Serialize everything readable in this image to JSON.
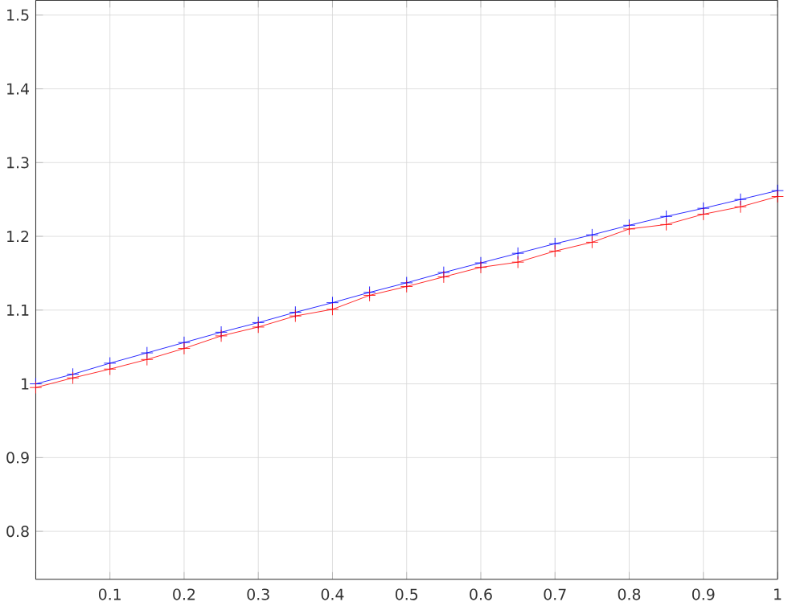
{
  "chart_data": {
    "type": "line",
    "x": [
      0,
      0.05,
      0.1,
      0.15,
      0.2,
      0.25,
      0.3,
      0.35,
      0.4,
      0.45,
      0.5,
      0.55,
      0.6,
      0.65,
      0.7,
      0.75,
      0.8,
      0.85,
      0.9,
      0.95,
      1
    ],
    "series": [
      {
        "color": "#0000ff",
        "values": [
          1.0,
          1.013,
          1.028,
          1.042,
          1.056,
          1.07,
          1.083,
          1.097,
          1.11,
          1.124,
          1.137,
          1.151,
          1.164,
          1.177,
          1.19,
          1.202,
          1.215,
          1.227,
          1.238,
          1.25,
          1.262
        ]
      },
      {
        "color": "#ff0000",
        "values": [
          0.995,
          1.008,
          1.02,
          1.033,
          1.048,
          1.065,
          1.077,
          1.092,
          1.101,
          1.12,
          1.132,
          1.145,
          1.158,
          1.165,
          1.18,
          1.192,
          1.21,
          1.216,
          1.23,
          1.24,
          1.254
        ]
      }
    ],
    "xlim": [
      0,
      1
    ],
    "ylim": [
      0.735,
      1.52
    ],
    "xticks": [
      {
        "value": 0,
        "label": null
      },
      0.1,
      0.2,
      0.3,
      0.4,
      0.5,
      0.6,
      0.7,
      0.8,
      0.9,
      1
    ],
    "yticks": [
      0.8,
      0.9,
      1,
      1.1,
      1.2,
      1.3,
      1.4,
      1.5
    ],
    "grid": true,
    "marker": "cross",
    "line_style": "solid"
  }
}
